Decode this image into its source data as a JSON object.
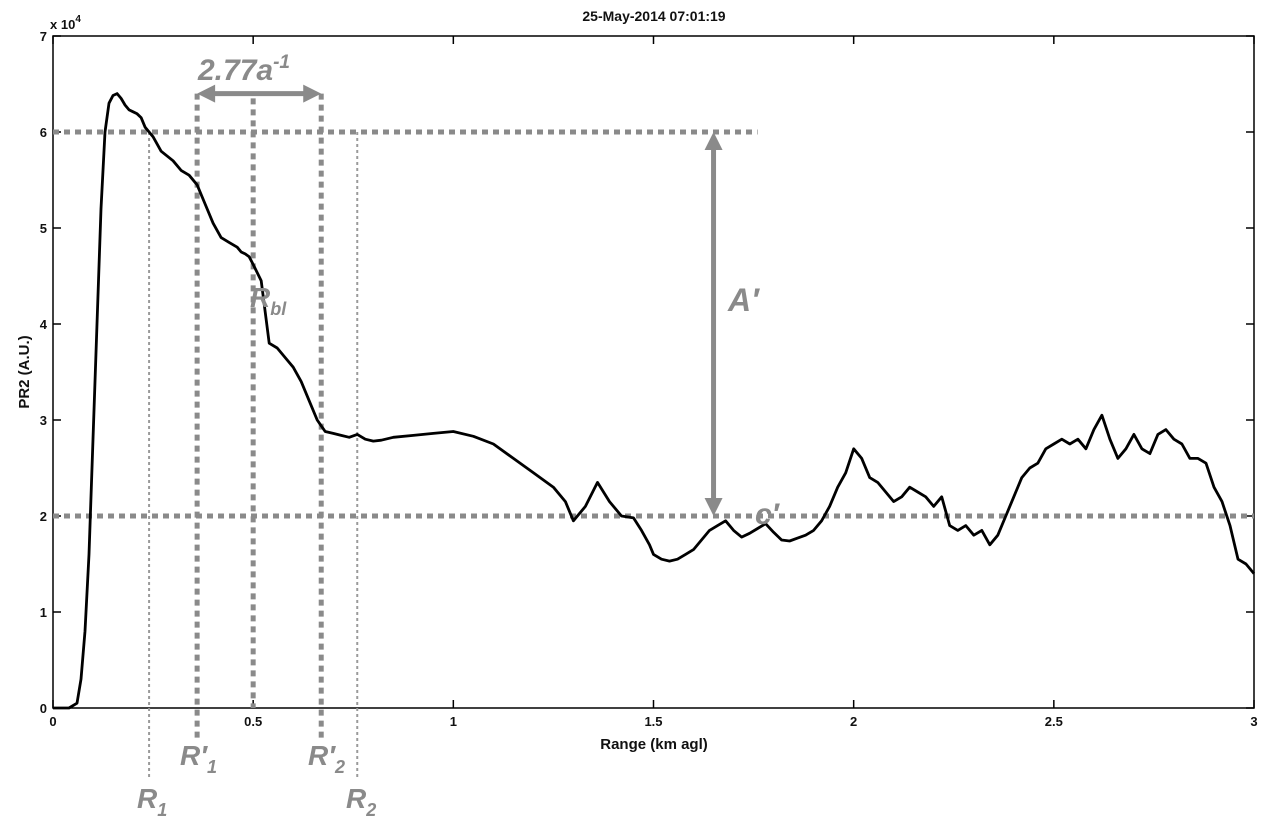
{
  "chart_data": {
    "type": "line",
    "title": "25-May-2014 07:01:19",
    "xlabel": "Range (km agl)",
    "ylabel": "PR2 (A.U.)",
    "y_multiplier": "x 10",
    "y_exponent": "4",
    "xlim": [
      0,
      3
    ],
    "ylim": [
      0,
      70000
    ],
    "x_ticks": [
      0,
      0.5,
      1,
      1.5,
      2,
      2.5,
      3
    ],
    "x_tick_labels": [
      "0",
      "0.5",
      "1",
      "1.5",
      "2",
      "2.5",
      "3"
    ],
    "y_ticks": [
      0,
      10000,
      20000,
      30000,
      40000,
      50000,
      60000,
      70000
    ],
    "y_tick_labels": [
      "0",
      "1",
      "2",
      "3",
      "4",
      "5",
      "6",
      "7"
    ],
    "grid": false,
    "series": [
      {
        "color": "#000000",
        "x": [
          0.0,
          0.04,
          0.06,
          0.07,
          0.08,
          0.09,
          0.1,
          0.11,
          0.12,
          0.13,
          0.14,
          0.15,
          0.16,
          0.17,
          0.18,
          0.19,
          0.2,
          0.21,
          0.22,
          0.23,
          0.25,
          0.27,
          0.3,
          0.32,
          0.34,
          0.36,
          0.38,
          0.4,
          0.42,
          0.44,
          0.46,
          0.47,
          0.48,
          0.49,
          0.5,
          0.52,
          0.54,
          0.56,
          0.58,
          0.6,
          0.62,
          0.64,
          0.66,
          0.67,
          0.68,
          0.7,
          0.72,
          0.74,
          0.76,
          0.78,
          0.8,
          0.82,
          0.85,
          0.9,
          0.95,
          1.0,
          1.05,
          1.1,
          1.15,
          1.2,
          1.25,
          1.28,
          1.3,
          1.33,
          1.36,
          1.39,
          1.42,
          1.45,
          1.47,
          1.49,
          1.5,
          1.52,
          1.54,
          1.56,
          1.58,
          1.6,
          1.62,
          1.64,
          1.66,
          1.68,
          1.7,
          1.72,
          1.74,
          1.76,
          1.78,
          1.8,
          1.82,
          1.84,
          1.86,
          1.88,
          1.9,
          1.92,
          1.94,
          1.96,
          1.98,
          2.0,
          2.02,
          2.04,
          2.06,
          2.08,
          2.1,
          2.12,
          2.14,
          2.16,
          2.18,
          2.2,
          2.22,
          2.24,
          2.26,
          2.28,
          2.3,
          2.32,
          2.34,
          2.36,
          2.38,
          2.4,
          2.42,
          2.44,
          2.46,
          2.48,
          2.5,
          2.52,
          2.54,
          2.56,
          2.58,
          2.6,
          2.62,
          2.64,
          2.66,
          2.68,
          2.7,
          2.72,
          2.74,
          2.76,
          2.78,
          2.8,
          2.82,
          2.84,
          2.86,
          2.88,
          2.9,
          2.92,
          2.94,
          2.96,
          2.98,
          3.0
        ],
        "y": [
          0,
          0,
          500,
          3000,
          8000,
          16000,
          28000,
          40000,
          52000,
          60000,
          63000,
          63800,
          64000,
          63500,
          62800,
          62300,
          62100,
          61900,
          61500,
          60500,
          59500,
          58000,
          57000,
          56000,
          55500,
          54500,
          52500,
          50500,
          49000,
          48500,
          48000,
          47500,
          47300,
          47000,
          46200,
          44500,
          38000,
          37500,
          36500,
          35500,
          34000,
          32000,
          30000,
          29400,
          28800,
          28600,
          28400,
          28200,
          28500,
          28000,
          27800,
          27900,
          28200,
          28400,
          28600,
          28800,
          28300,
          27500,
          26000,
          24500,
          23000,
          21500,
          19500,
          21000,
          23500,
          21500,
          20000,
          19800,
          18500,
          17000,
          16000,
          15500,
          15300,
          15500,
          16000,
          16500,
          17500,
          18500,
          19000,
          19500,
          18500,
          17800,
          18200,
          18700,
          19200,
          18300,
          17500,
          17400,
          17700,
          18000,
          18500,
          19500,
          21000,
          23000,
          24500,
          27000,
          26000,
          24000,
          23500,
          22500,
          21500,
          22000,
          23000,
          22500,
          22000,
          21000,
          22000,
          19000,
          18500,
          19000,
          18000,
          18500,
          17000,
          18000,
          20000,
          22000,
          24000,
          25000,
          25500,
          27000,
          27500,
          28000,
          27500,
          28000,
          27000,
          29000,
          30500,
          28000,
          26000,
          27000,
          28500,
          27000,
          26500,
          28500,
          29000,
          28000,
          27500,
          26000,
          26000,
          25500,
          23000,
          21500,
          19000,
          15500,
          15000,
          14000
        ]
      }
    ],
    "annotations": {
      "R1": "R",
      "R1_sub": "1",
      "R2": "R",
      "R2_sub": "2",
      "Rp1": "R′",
      "Rp1_sub": "1",
      "Rp2": "R′",
      "Rp2_sub": "2",
      "Rbl": "R",
      "Rbl_sub": "bl",
      "width_label": "2.77a",
      "width_sup": "-1",
      "amp_label": "A′",
      "offset_label": "c′"
    },
    "annotation_values": {
      "R1": 0.24,
      "R2": 0.76,
      "Rp1": 0.36,
      "Rp2": 0.67,
      "Rbl": 0.5,
      "upper_level": 60000,
      "lower_level": 20000,
      "amp_x": 1.65,
      "width_arrow_y": 64000
    },
    "annotation_color": "#8a8a8a"
  }
}
